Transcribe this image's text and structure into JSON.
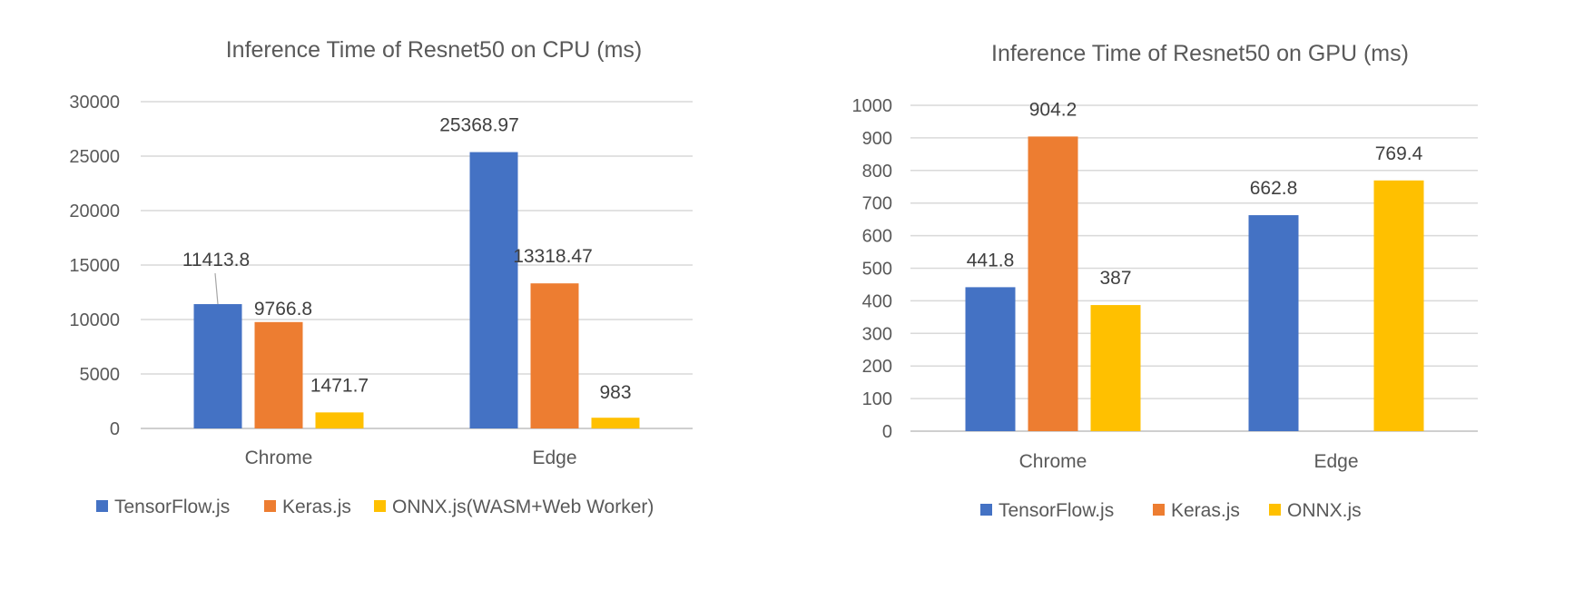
{
  "chart_data": [
    {
      "type": "bar",
      "title": "Inference Time of Resnet50 on CPU (ms)",
      "xlabel": "",
      "ylabel": "",
      "ylim": [
        0,
        30000
      ],
      "y_ticks": [
        0,
        5000,
        10000,
        15000,
        20000,
        25000,
        30000
      ],
      "categories": [
        "Chrome",
        "Edge"
      ],
      "series": [
        {
          "name": "TensorFlow.js",
          "color": "#4472C4",
          "values": [
            11413.8,
            25368.97
          ],
          "labels": [
            "11413.8",
            "25368.97"
          ]
        },
        {
          "name": "Keras.js",
          "color": "#ED7D31",
          "values": [
            9766.8,
            13318.47
          ],
          "labels": [
            "9766.8",
            "13318.47"
          ]
        },
        {
          "name": "ONNX.js(WASM+Web Worker)",
          "color": "#FFC000",
          "values": [
            1471.7,
            983
          ],
          "labels": [
            "1471.7",
            "983"
          ]
        }
      ],
      "grid": true,
      "legend": "bottom"
    },
    {
      "type": "bar",
      "title": "Inference Time of Resnet50 on GPU (ms)",
      "xlabel": "",
      "ylabel": "",
      "ylim": [
        0,
        1000
      ],
      "y_ticks": [
        0,
        100,
        200,
        300,
        400,
        500,
        600,
        700,
        800,
        900,
        1000
      ],
      "categories": [
        "Chrome",
        "Edge"
      ],
      "series": [
        {
          "name": "TensorFlow.js",
          "color": "#4472C4",
          "values": [
            441.8,
            662.8
          ],
          "labels": [
            "441.8",
            "662.8"
          ]
        },
        {
          "name": "Keras.js",
          "color": "#ED7D31",
          "values": [
            904.2,
            null
          ],
          "labels": [
            "904.2",
            ""
          ]
        },
        {
          "name": "ONNX.js",
          "color": "#FFC000",
          "values": [
            387,
            769.4
          ],
          "labels": [
            "387",
            "769.4"
          ]
        }
      ],
      "grid": true,
      "legend": "bottom"
    }
  ]
}
